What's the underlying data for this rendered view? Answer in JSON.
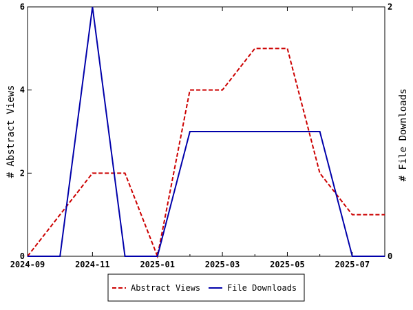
{
  "chart_data": {
    "type": "line",
    "title": "",
    "x": [
      "2024-09",
      "2024-10",
      "2024-11",
      "2024-12",
      "2025-01",
      "2025-02",
      "2025-03",
      "2025-04",
      "2025-05",
      "2025-06",
      "2025-07",
      "2025-08"
    ],
    "x_ticks": [
      "2024-09",
      "2024-11",
      "2025-01",
      "2025-03",
      "2025-05",
      "2025-07"
    ],
    "xlim": [
      "2024-09",
      "2025-08"
    ],
    "y_left": {
      "label": "# Abstract Views",
      "ylim": [
        0,
        6
      ],
      "ticks": [
        "0",
        "2",
        "4",
        "6"
      ]
    },
    "y_right": {
      "label": "# File Downloads",
      "ylim": [
        0,
        2
      ],
      "ticks": [
        "0",
        "2"
      ]
    },
    "series": [
      {
        "name": "Abstract Views",
        "axis": "left",
        "color": "#cc0000",
        "dash": "dashed",
        "values": [
          0,
          1,
          2,
          2,
          0,
          4,
          4,
          5,
          5,
          2,
          1,
          1
        ]
      },
      {
        "name": "File Downloads",
        "axis": "right",
        "color": "#0000aa",
        "dash": "solid",
        "values": [
          0,
          0,
          2,
          0,
          0,
          1,
          1,
          1,
          1,
          1,
          0,
          0
        ]
      }
    ],
    "legend": {
      "placement": "bottom-center"
    },
    "grid": false
  }
}
